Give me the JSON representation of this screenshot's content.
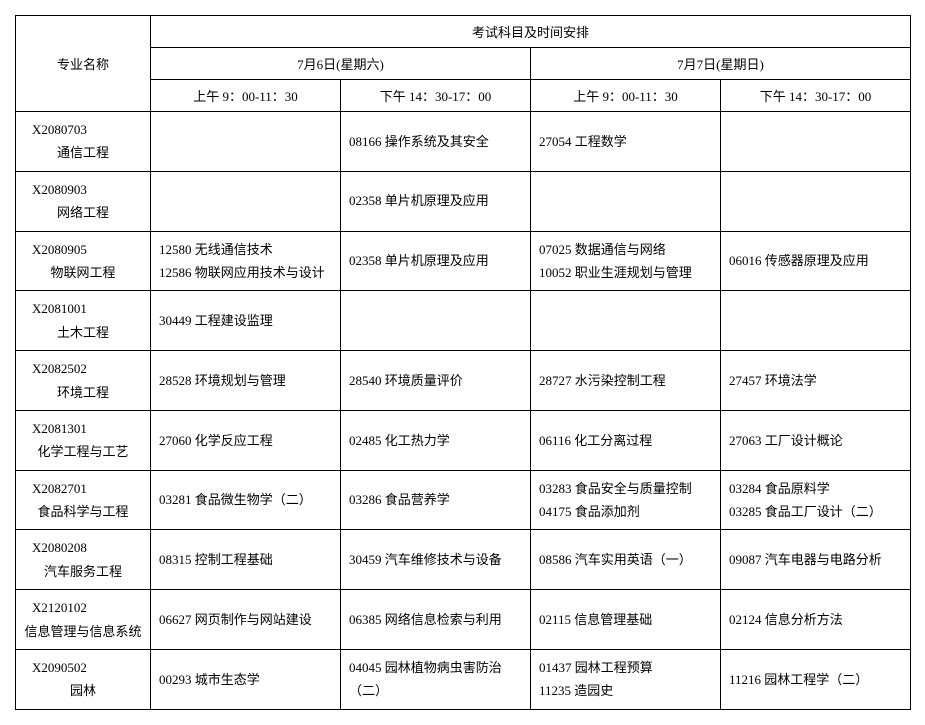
{
  "header": {
    "major_label": "专业名称",
    "super_header": "考试科目及时间安排",
    "day1": "7月6日(星期六)",
    "day2": "7月7日(星期日)",
    "slot_am": "上午 9：00-11：30",
    "slot_pm": "下午 14：30-17：00"
  },
  "rows": [
    {
      "code": "X2080703",
      "name": "通信工程",
      "d1am": [],
      "d1pm": [
        "08166 操作系统及其安全"
      ],
      "d2am": [
        "27054 工程数学"
      ],
      "d2pm": []
    },
    {
      "code": "X2080903",
      "name": "网络工程",
      "d1am": [],
      "d1pm": [
        "02358 单片机原理及应用"
      ],
      "d2am": [],
      "d2pm": []
    },
    {
      "code": "X2080905",
      "name": "物联网工程",
      "d1am": [
        "12580 无线通信技术",
        "12586 物联网应用技术与设计"
      ],
      "d1pm": [
        "02358 单片机原理及应用"
      ],
      "d2am": [
        "07025 数据通信与网络",
        "10052 职业生涯规划与管理"
      ],
      "d2pm": [
        "06016 传感器原理及应用"
      ]
    },
    {
      "code": "X2081001",
      "name": "土木工程",
      "d1am": [
        "30449 工程建设监理"
      ],
      "d1pm": [],
      "d2am": [],
      "d2pm": []
    },
    {
      "code": "X2082502",
      "name": "环境工程",
      "d1am": [
        "28528 环境规划与管理"
      ],
      "d1pm": [
        "28540 环境质量评价"
      ],
      "d2am": [
        "28727 水污染控制工程"
      ],
      "d2pm": [
        "27457 环境法学"
      ]
    },
    {
      "code": "X2081301",
      "name": "化学工程与工艺",
      "d1am": [
        "27060 化学反应工程"
      ],
      "d1pm": [
        "02485 化工热力学"
      ],
      "d2am": [
        "06116 化工分离过程"
      ],
      "d2pm": [
        "27063 工厂设计概论"
      ]
    },
    {
      "code": "X2082701",
      "name": "食品科学与工程",
      "d1am": [
        "03281 食品微生物学（二）"
      ],
      "d1pm": [
        "03286 食品营养学"
      ],
      "d2am": [
        "03283 食品安全与质量控制",
        "04175 食品添加剂"
      ],
      "d2pm": [
        "03284 食品原料学",
        "03285 食品工厂设计（二）"
      ]
    },
    {
      "code": "X2080208",
      "name": "汽车服务工程",
      "d1am": [
        "08315 控制工程基础"
      ],
      "d1pm": [
        "30459 汽车维修技术与设备"
      ],
      "d2am": [
        "08586 汽车实用英语（一）"
      ],
      "d2pm": [
        "09087 汽车电器与电路分析"
      ]
    },
    {
      "code": "X2120102",
      "name": "信息管理与信息系统",
      "d1am": [
        "06627 网页制作与网站建设"
      ],
      "d1pm": [
        "06385 网络信息检索与利用"
      ],
      "d2am": [
        "02115 信息管理基础"
      ],
      "d2pm": [
        "02124 信息分析方法"
      ]
    },
    {
      "code": "X2090502",
      "name": "园林",
      "d1am": [
        "00293 城市生态学"
      ],
      "d1pm": [
        "04045 园林植物病虫害防治（二）"
      ],
      "d2am": [
        "01437 园林工程预算",
        "11235 造园史"
      ],
      "d2pm": [
        "11216 园林工程学（二）"
      ]
    }
  ]
}
